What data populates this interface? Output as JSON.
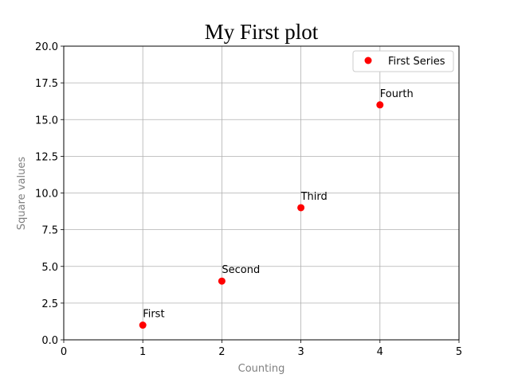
{
  "chart_data": {
    "type": "scatter",
    "title": "My First plot",
    "xlabel": "Counting",
    "ylabel": "Square values",
    "xlim": [
      0,
      5
    ],
    "ylim": [
      0,
      20
    ],
    "xticks": [
      "0",
      "1",
      "2",
      "3",
      "4",
      "5"
    ],
    "yticks": [
      "0.0",
      "2.5",
      "5.0",
      "7.5",
      "10.0",
      "12.5",
      "15.0",
      "17.5",
      "20.0"
    ],
    "grid": true,
    "legend_position": "top-right",
    "series": [
      {
        "name": "First Series",
        "color": "#ff0000",
        "marker": "circle",
        "x": [
          1,
          2,
          3,
          4
        ],
        "y": [
          1,
          4,
          9,
          16
        ],
        "annotations": [
          "First",
          "Second",
          "Third",
          "Fourth"
        ]
      }
    ]
  }
}
